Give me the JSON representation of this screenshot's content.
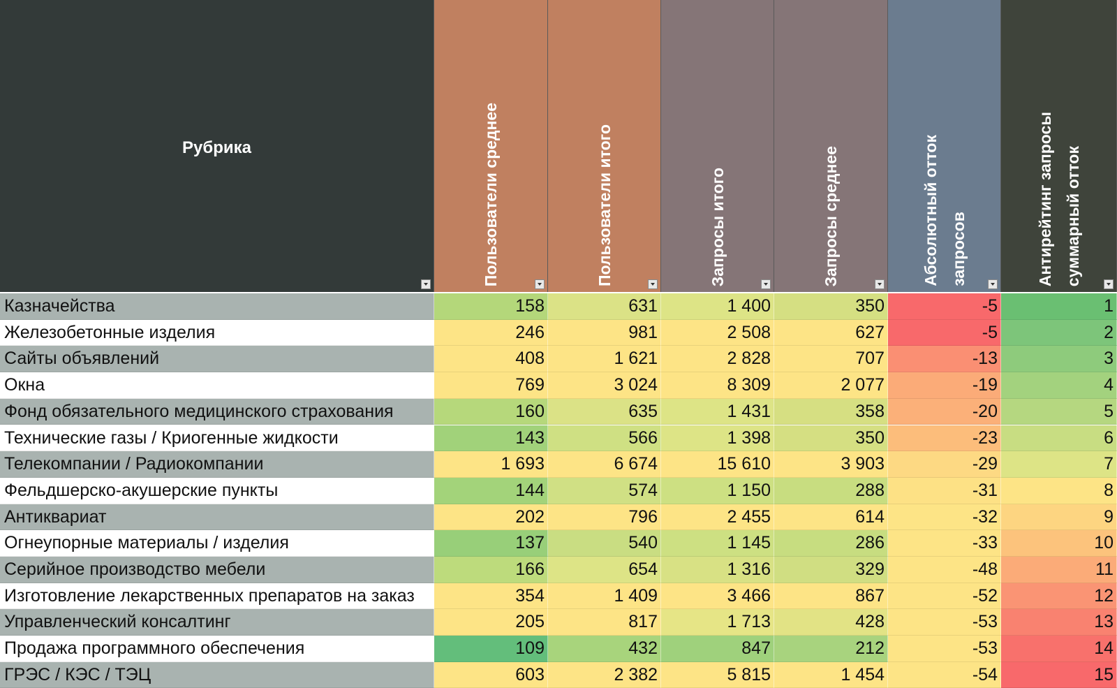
{
  "header": {
    "rubric": "Рубрика",
    "columns": [
      {
        "label": "Пользователи среднее",
        "color": "#c08060"
      },
      {
        "label": "Пользователи итого",
        "color": "#c08060"
      },
      {
        "label": "Запросы итого",
        "color": "#857577"
      },
      {
        "label": "Запросы среднее",
        "color": "#857577"
      },
      {
        "label": "Абсолютный отток\nзапросов",
        "color": "#6b7c8f"
      },
      {
        "label": "Антирейтинг запросы\nсуммарный отток",
        "color": "#3f443b"
      }
    ]
  },
  "rows": [
    {
      "name": "Казначейства",
      "values": [
        "158",
        "631",
        "1 400",
        "350",
        "-5",
        "1"
      ],
      "colors": [
        "#b4d77a",
        "#dbe286",
        "#dde486",
        "#d5df82",
        "#f8696b",
        "#6abf72"
      ]
    },
    {
      "name": "Железобетонные изделия",
      "values": [
        "246",
        "981",
        "2 508",
        "627",
        "-5",
        "2"
      ],
      "colors": [
        "#fde486",
        "#fde486",
        "#fde486",
        "#fde486",
        "#f8696b",
        "#7dc57a"
      ]
    },
    {
      "name": "Сайты объявлений",
      "values": [
        "408",
        "1 621",
        "2 828",
        "707",
        "-13",
        "3"
      ],
      "colors": [
        "#fde486",
        "#fde486",
        "#fde486",
        "#fde486",
        "#fa8f73",
        "#8ecb7c"
      ]
    },
    {
      "name": "Окна",
      "values": [
        "769",
        "3 024",
        "8 309",
        "2 077",
        "-19",
        "4"
      ],
      "colors": [
        "#fde486",
        "#fde486",
        "#fde486",
        "#fde486",
        "#fbab78",
        "#a3d27e"
      ]
    },
    {
      "name": "Фонд обязательного медицинского страхования",
      "values": [
        "160",
        "635",
        "1 431",
        "358",
        "-20",
        "5"
      ],
      "colors": [
        "#b6d87b",
        "#dbe286",
        "#dde486",
        "#d6df82",
        "#fbb079",
        "#b5d780"
      ]
    },
    {
      "name": "Технические газы / Криогенные жидкости",
      "values": [
        "143",
        "566",
        "1 398",
        "350",
        "-23",
        "6"
      ],
      "colors": [
        "#a1d27a",
        "#cfe083",
        "#dde486",
        "#d5df82",
        "#fcbd7b",
        "#c8dd82"
      ]
    },
    {
      "name": "Телекомпании / Радиокомпании",
      "values": [
        "1 693",
        "6 674",
        "15 610",
        "3 903",
        "-29",
        "7"
      ],
      "colors": [
        "#fde486",
        "#fde486",
        "#fde486",
        "#fde486",
        "#fdd983",
        "#dde486"
      ]
    },
    {
      "name": "Фельдшерско-акушерские пункты",
      "values": [
        "144",
        "574",
        "1 150",
        "288",
        "-31",
        "8"
      ],
      "colors": [
        "#a3d37a",
        "#d0e084",
        "#cde082",
        "#c8dd80",
        "#fde185",
        "#fde486"
      ]
    },
    {
      "name": "Антиквариат",
      "values": [
        "202",
        "796",
        "2 455",
        "614",
        "-32",
        "9"
      ],
      "colors": [
        "#fde486",
        "#fde486",
        "#fde486",
        "#fde486",
        "#fde486",
        "#fdd581"
      ]
    },
    {
      "name": "Огнеупорные материалы / изделия",
      "values": [
        "137",
        "540",
        "1 145",
        "286",
        "-33",
        "10"
      ],
      "colors": [
        "#98cf79",
        "#c9dd82",
        "#cde082",
        "#c7dd80",
        "#fde486",
        "#fcc37c"
      ]
    },
    {
      "name": "Серийное производство мебели",
      "values": [
        "166",
        "654",
        "1 316",
        "329",
        "-48",
        "11"
      ],
      "colors": [
        "#bddb7c",
        "#dde486",
        "#d8e184",
        "#d0de82",
        "#fde486",
        "#fbab78"
      ]
    },
    {
      "name": "Изготовление лекарственных препаратов на заказ",
      "values": [
        "354",
        "1 409",
        "3 466",
        "867",
        "-52",
        "12"
      ],
      "colors": [
        "#fde486",
        "#fde486",
        "#fde486",
        "#fde486",
        "#fde486",
        "#fa9474"
      ]
    },
    {
      "name": "Управленческий консалтинг",
      "values": [
        "205",
        "817",
        "1 713",
        "428",
        "-53",
        "13"
      ],
      "colors": [
        "#fde486",
        "#fde486",
        "#e6e586",
        "#e2e385",
        "#fde486",
        "#f98270"
      ]
    },
    {
      "name": "Продажа программного обеспечения",
      "values": [
        "109",
        "432",
        "847",
        "212",
        "-53",
        "14"
      ],
      "colors": [
        "#63be7b",
        "#a8d47c",
        "#9fd17c",
        "#a8d37e",
        "#fde486",
        "#f8716c"
      ]
    },
    {
      "name": "ГРЭС / КЭС / ТЭЦ",
      "values": [
        "603",
        "2 382",
        "5 815",
        "1 454",
        "-54",
        "15"
      ],
      "colors": [
        "#fde486",
        "#fde486",
        "#fde486",
        "#fde486",
        "#fde486",
        "#f8696b"
      ]
    }
  ],
  "theme": {
    "header_rubric_bg": "#333a39",
    "row_odd_name_bg": "#a9b3b0",
    "row_even_name_bg": "#ffffff"
  }
}
